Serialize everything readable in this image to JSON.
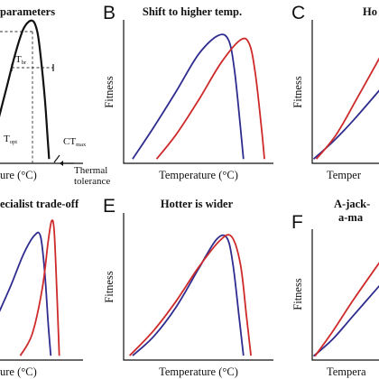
{
  "colors": {
    "blue": "#2f2c8f",
    "red": "#cf2a2a",
    "black": "#111111"
  },
  "chart_data": [
    {
      "letter": "",
      "title": "parameters",
      "type": "line",
      "xlabel": "ure (°C)",
      "ylabel": "",
      "xlim": [
        0,
        10
      ],
      "ylim": [
        0,
        10
      ],
      "series": [
        {
          "color": "black",
          "x": [
            0,
            1,
            2,
            3,
            4,
            4.6,
            5,
            5.5,
            5.8,
            6.0
          ],
          "y": [
            3.0,
            5.3,
            7.6,
            9.4,
            9.95,
            9.2,
            7.5,
            4.5,
            2.0,
            0.3
          ]
        }
      ],
      "annotations": {
        "topt": "T",
        "topt_sub": "opt",
        "tbr": "T",
        "tbr_sub": "br",
        "ctmax": "CT",
        "ctmax_sub": "max",
        "tol1": "Thermal",
        "tol2": "tolerance"
      }
    },
    {
      "letter": "B",
      "title": "Shift to higher temp.",
      "type": "line",
      "xlabel": "Temperature (°C)",
      "ylabel": "Fitness",
      "xlim": [
        0,
        10
      ],
      "ylim": [
        0,
        10
      ],
      "series": [
        {
          "color": "blue",
          "x": [
            0.6,
            2,
            3.5,
            5,
            6.3,
            7.0,
            7.4,
            7.8,
            8.0
          ],
          "y": [
            0.3,
            2.5,
            5,
            7.6,
            8.9,
            8.6,
            6.5,
            2.5,
            0.3
          ]
        },
        {
          "color": "red",
          "x": [
            2.2,
            3.5,
            5,
            6.5,
            7.8,
            8.4,
            8.8,
            9.2,
            9.4
          ],
          "y": [
            0.3,
            2.0,
            4.4,
            7.0,
            8.6,
            8.3,
            6.2,
            2.5,
            0.3
          ]
        }
      ]
    },
    {
      "letter": "C",
      "title": "Ho",
      "type": "line",
      "xlabel": "Temper",
      "ylabel": "Fitness",
      "xlim": [
        0,
        10
      ],
      "ylim": [
        0,
        10
      ],
      "series": [
        {
          "color": "blue",
          "x": [
            0.2,
            3,
            6,
            10
          ],
          "y": [
            0.3,
            1.5,
            3.0,
            5.2
          ]
        },
        {
          "color": "red",
          "x": [
            0.6,
            3.5,
            6.5,
            10
          ],
          "y": [
            0.3,
            2.0,
            4.5,
            7.5
          ]
        }
      ]
    },
    {
      "letter": "",
      "title": "ecialist trade-off",
      "type": "line",
      "xlabel": "ure (°C)",
      "ylabel": "",
      "xlim": [
        0,
        10
      ],
      "ylim": [
        0,
        10
      ],
      "series": [
        {
          "color": "blue",
          "x": [
            0,
            1.5,
            3,
            4.3,
            5.0,
            5.5,
            5.9,
            6.2
          ],
          "y": [
            3.2,
            5.2,
            7.4,
            8.7,
            8.6,
            6.0,
            2.5,
            0.3
          ]
        },
        {
          "color": "red",
          "x": [
            2.6,
            4,
            5.2,
            5.9,
            6.3,
            6.6,
            6.9,
            7.2
          ],
          "y": [
            0.3,
            1.8,
            5.0,
            8.3,
            9.7,
            9.0,
            5.0,
            0.3
          ]
        }
      ]
    },
    {
      "letter": "E",
      "title": "Hotter is wider",
      "type": "line",
      "xlabel": "Temperature (°C)",
      "ylabel": "Fitness",
      "xlim": [
        0,
        10
      ],
      "ylim": [
        0,
        10
      ],
      "series": [
        {
          "color": "blue",
          "x": [
            0.6,
            2,
            3.5,
            5,
            6.2,
            6.9,
            7.3,
            7.7,
            8.0
          ],
          "y": [
            0.3,
            1.6,
            3.6,
            6.2,
            8.2,
            8.3,
            6.5,
            3.0,
            0.3
          ]
        },
        {
          "color": "red",
          "x": [
            0.4,
            2,
            3.5,
            5,
            6.4,
            7.2,
            7.8,
            8.2,
            8.5
          ],
          "y": [
            0.3,
            2.0,
            4.0,
            6.3,
            8.1,
            8.4,
            6.5,
            3.0,
            0.3
          ]
        }
      ]
    },
    {
      "letter": "F",
      "title": "A-jack-",
      "title2": "a-ma",
      "type": "line",
      "xlabel": "Tempera",
      "ylabel": "Fitness",
      "xlim": [
        0,
        10
      ],
      "ylim": [
        0,
        10
      ],
      "series": [
        {
          "color": "blue",
          "x": [
            0.2,
            3,
            6,
            10
          ],
          "y": [
            0.3,
            1.6,
            3.4,
            5.8
          ]
        },
        {
          "color": "red",
          "x": [
            0.4,
            3,
            6,
            10
          ],
          "y": [
            0.3,
            2.2,
            4.6,
            7.6
          ]
        }
      ]
    }
  ]
}
